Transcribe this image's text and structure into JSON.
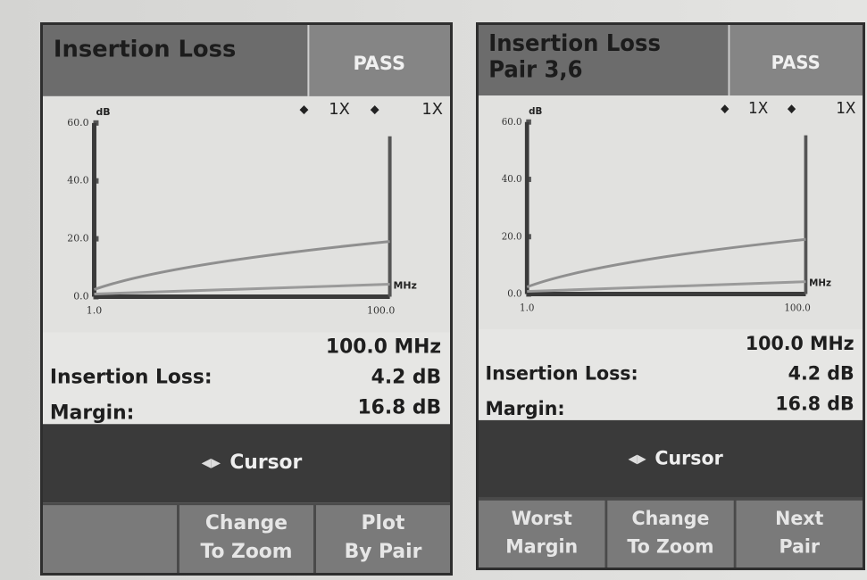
{
  "panels": [
    {
      "title": [
        "Insertion Loss"
      ],
      "status": "PASS",
      "zoom": [
        "1X",
        "1X"
      ],
      "y_unit": "dB",
      "x_unit": "MHz",
      "y_ticks": [
        "60.0",
        "40.0",
        "20.0",
        "0.0"
      ],
      "x_ticks": [
        "1.0",
        "100.0"
      ],
      "frequency": "100.0 MHz",
      "readings": [
        {
          "label": "Insertion Loss:",
          "value": "4.2 dB"
        },
        {
          "label": "Margin:",
          "value": "16.8 dB"
        }
      ],
      "cursor": "Cursor",
      "buttons": [
        [
          "Change",
          "To Zoom"
        ],
        [
          "Plot",
          "By Pair"
        ]
      ]
    },
    {
      "title": [
        "Insertion Loss",
        "Pair 3,6"
      ],
      "status": "PASS",
      "zoom": [
        "1X",
        "1X"
      ],
      "y_unit": "dB",
      "x_unit": "MHz",
      "y_ticks": [
        "60.0",
        "40.0",
        "20.0",
        "0.0"
      ],
      "x_ticks": [
        "1.0",
        "100.0"
      ],
      "frequency": "100.0 MHz",
      "readings": [
        {
          "label": "Insertion Loss:",
          "value": "4.2 dB"
        },
        {
          "label": "Margin:",
          "value": "16.8 dB"
        }
      ],
      "cursor": "Cursor",
      "buttons": [
        [
          "Worst",
          "Margin"
        ],
        [
          "Change",
          "To Zoom"
        ],
        [
          "Next",
          "Pair"
        ]
      ]
    }
  ]
}
